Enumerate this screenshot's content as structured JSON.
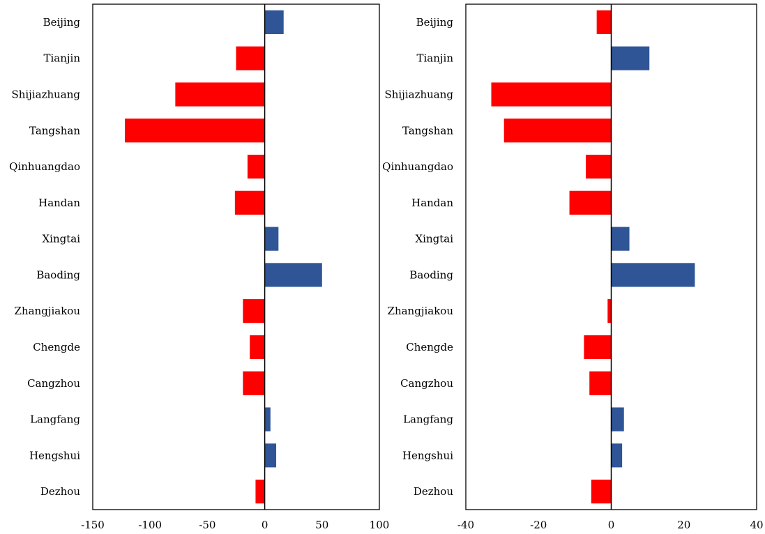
{
  "chart_data": [
    {
      "type": "bar",
      "orientation": "horizontal",
      "categories": [
        "Beijing",
        "Tianjin",
        "Shijiazhuang",
        "Tangshan",
        "Qinhuangdao",
        "Handan",
        "Xingtai",
        "Baoding",
        "Zhangjiakou",
        "Chengde",
        "Cangzhou",
        "Langfang",
        "Hengshui",
        "Dezhou"
      ],
      "values": [
        16.5,
        -25,
        -78,
        -122,
        -15,
        -26,
        12,
        50,
        -19,
        -13,
        -19,
        5,
        10,
        -8
      ],
      "xlim": [
        -150,
        100
      ],
      "xticks": [
        "-150",
        "-100",
        "-50",
        "0",
        "50",
        "100"
      ],
      "xtick_values": [
        -150,
        -100,
        -50,
        0,
        50,
        100
      ],
      "positive_color": "#2F5597",
      "negative_color": "#FF0000",
      "grid": false
    },
    {
      "type": "bar",
      "orientation": "horizontal",
      "categories": [
        "Beijing",
        "Tianjin",
        "Shijiazhuang",
        "Tangshan",
        "Qinhuangdao",
        "Handan",
        "Xingtai",
        "Baoding",
        "Zhangjiakou",
        "Chengde",
        "Cangzhou",
        "Langfang",
        "Hengshui",
        "Dezhou"
      ],
      "values": [
        -4,
        10.5,
        -33,
        -29.5,
        -7,
        -11.5,
        5,
        23,
        -1,
        -7.5,
        -6,
        3.5,
        3,
        -5.5
      ],
      "xlim": [
        -40,
        40
      ],
      "xticks": [
        "-40",
        "-20",
        "0",
        "20",
        "40"
      ],
      "xtick_values": [
        -40,
        -20,
        0,
        20,
        40
      ],
      "positive_color": "#2F5597",
      "negative_color": "#FF0000",
      "grid": false
    }
  ]
}
